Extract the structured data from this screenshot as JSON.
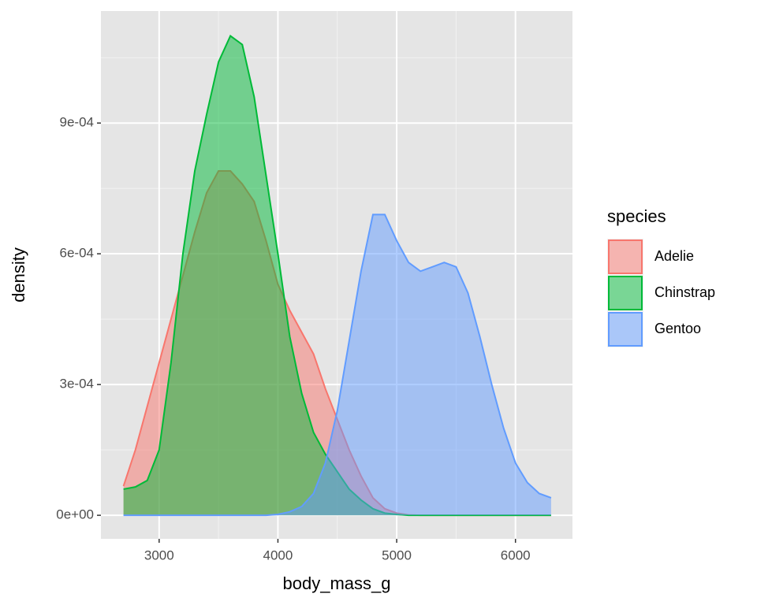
{
  "chart_data": {
    "type": "density",
    "x_label": "body_mass_g",
    "y_label": "density",
    "legend_title": "species",
    "legend_position": "right",
    "grid": true,
    "panel_color": "#e5e5e5",
    "fill_opacity": 0.5,
    "xlim": [
      2510,
      6480
    ],
    "ylim": [
      -5.4e-05,
      0.001157
    ],
    "xticks": [
      3000,
      4000,
      5000,
      6000
    ],
    "yticks": [
      {
        "value": 0,
        "label": "0e+00"
      },
      {
        "value": 0.0003,
        "label": "3e-04"
      },
      {
        "value": 0.0006,
        "label": "6e-04"
      },
      {
        "value": 0.0009,
        "label": "9e-04"
      }
    ],
    "x": [
      2700,
      2800,
      2900,
      3000,
      3100,
      3200,
      3300,
      3400,
      3500,
      3600,
      3700,
      3800,
      3900,
      4000,
      4100,
      4200,
      4300,
      4400,
      4500,
      4600,
      4700,
      4800,
      4900,
      5000,
      5100,
      5200,
      5300,
      5400,
      5500,
      5600,
      5700,
      5800,
      5900,
      6000,
      6100,
      6200,
      6300
    ],
    "series": [
      {
        "name": "Adelie",
        "color": "#F8766D",
        "values": [
          6.7e-05,
          0.00015,
          0.00025,
          0.00035,
          0.00045,
          0.00055,
          0.00065,
          0.00074,
          0.00079,
          0.00079,
          0.00076,
          0.00072,
          0.00063,
          0.00053,
          0.00047,
          0.00042,
          0.00037,
          0.00029,
          0.00022,
          0.00015,
          9e-05,
          4e-05,
          1.5e-05,
          5e-06,
          1e-06,
          0,
          0,
          0,
          0,
          0,
          0,
          0,
          0,
          0,
          0,
          0,
          0
        ]
      },
      {
        "name": "Chinstrap",
        "color": "#00BA38",
        "values": [
          6e-05,
          6.5e-05,
          8e-05,
          0.00015,
          0.00035,
          0.0006,
          0.00079,
          0.00092,
          0.00104,
          0.0011,
          0.00108,
          0.00096,
          0.00078,
          0.0006,
          0.00041,
          0.00028,
          0.00019,
          0.00014,
          0.0001,
          6e-05,
          3.5e-05,
          1.5e-05,
          5e-06,
          2e-06,
          0,
          0,
          0,
          0,
          0,
          0,
          0,
          0,
          0,
          0,
          0,
          0,
          0
        ]
      },
      {
        "name": "Gentoo",
        "color": "#619CFF",
        "values": [
          0,
          0,
          0,
          0,
          0,
          0,
          0,
          0,
          0,
          0,
          0,
          0,
          0,
          2e-06,
          8e-06,
          2e-05,
          5e-05,
          0.00012,
          0.00024,
          0.0004,
          0.00056,
          0.00069,
          0.00069,
          0.00063,
          0.00058,
          0.00056,
          0.00057,
          0.00058,
          0.00057,
          0.00051,
          0.00041,
          0.0003,
          0.0002,
          0.00012,
          7.5e-05,
          5e-05,
          4e-05
        ]
      }
    ]
  }
}
